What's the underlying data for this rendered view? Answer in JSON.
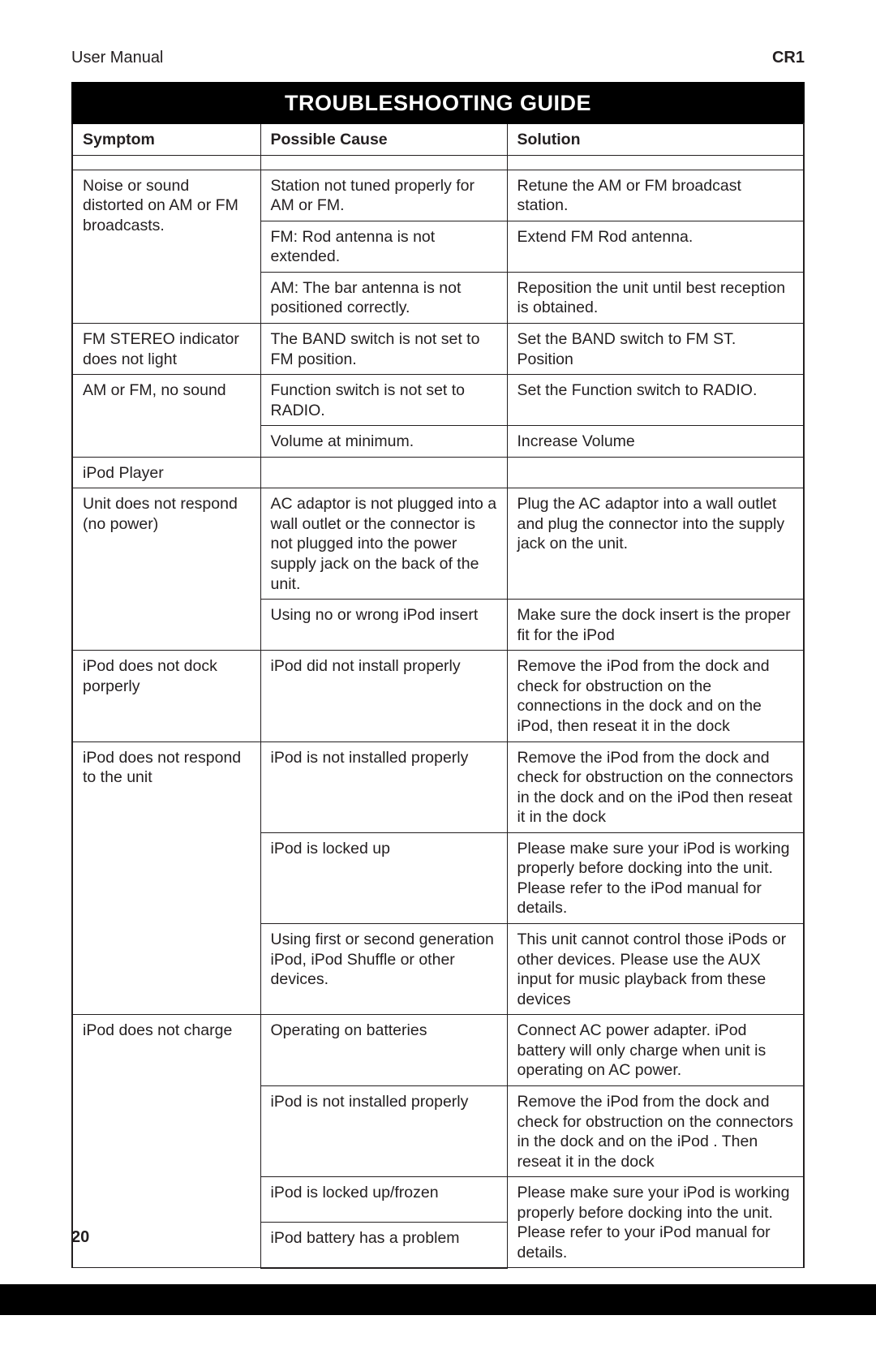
{
  "header": {
    "left": "User Manual",
    "right": "CR1"
  },
  "title": "TROUBLESHOOTING GUIDE",
  "columns": [
    "Symptom",
    "Possible Cause",
    "Solution"
  ],
  "page_number": "20",
  "rows": {
    "r1": {
      "symptom": "Noise or sound distorted on AM or FM broadcasts.",
      "cause": "Station not tuned properly for AM or FM.",
      "solution": "Retune the AM or FM broadcast station."
    },
    "r2": {
      "cause": "FM: Rod antenna is not extended.",
      "solution": "Extend FM Rod antenna."
    },
    "r3": {
      "cause": "AM: The bar antenna is not positioned correctly.",
      "solution": "Reposition the unit until best reception is obtained."
    },
    "r4": {
      "symptom": "FM STEREO indicator does not light",
      "cause": "The BAND switch is not set to FM position.",
      "solution": "Set the BAND switch to FM ST. Position"
    },
    "r5": {
      "symptom": "AM or FM, no sound",
      "cause": "Function switch is not set to RADIO.",
      "solution": "Set the Function switch to RADIO."
    },
    "r6": {
      "cause": "Volume at minimum.",
      "solution": "Increase Volume"
    },
    "r7": {
      "symptom": "iPod Player"
    },
    "r8": {
      "symptom": "Unit does not respond (no power)",
      "cause": "AC adaptor is not plugged into a wall outlet or the connector is not plugged into the power supply jack on the back of the unit.",
      "solution": "Plug the AC adaptor into a wall outlet and plug the connector into the supply jack on the unit."
    },
    "r9": {
      "cause": "Using no or wrong iPod insert",
      "solution": "Make sure the dock insert is the proper fit for the iPod"
    },
    "r10": {
      "symptom": "iPod does not dock porperly",
      "cause": "iPod did not install properly",
      "solution": "Remove the iPod from the dock and check for obstruction on the connections in the dock and on the iPod, then reseat it in the dock"
    },
    "r11": {
      "symptom": "iPod does not respond to the unit",
      "cause": "iPod is not installed properly",
      "solution": "Remove the iPod from the dock and check for obstruction on the connectors in the dock and on the iPod then reseat it in the dock"
    },
    "r12": {
      "cause": "iPod is locked up",
      "solution": "Please make sure your iPod is working properly before docking into the unit. Please refer to the iPod manual for details."
    },
    "r13": {
      "cause": "Using first or second generation iPod, iPod Shuffle or other devices.",
      "solution": "This unit cannot control those iPods or other devices. Please use the AUX input for music playback from these devices"
    },
    "r14": {
      "symptom": "iPod does not charge",
      "cause": "Operating on batteries",
      "solution": "Connect AC power adapter. iPod battery will only charge when unit is operating on AC power."
    },
    "r15": {
      "cause": "iPod is not installed properly",
      "solution": "Remove the iPod from the dock and check for obstruction on the connectors in the dock and on the iPod . Then reseat it in the dock"
    },
    "r16": {
      "cause": "iPod is locked up/frozen",
      "solution": "Please make sure your iPod is working properly before docking into the unit. Please refer to your iPod manual for details."
    },
    "r17": {
      "cause": "iPod battery has a problem"
    }
  }
}
